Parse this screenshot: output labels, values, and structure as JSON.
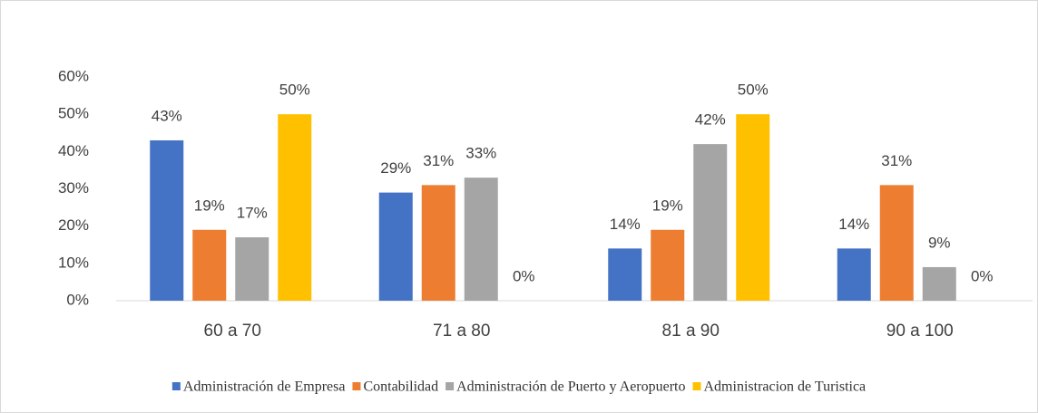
{
  "chart_data": {
    "type": "bar",
    "categories": [
      "60 a 70",
      "71 a 80",
      "81 a 90",
      "90 a 100"
    ],
    "series": [
      {
        "name": "Administración de Empresa",
        "color": "#4472c4",
        "values": [
          43,
          29,
          14,
          14
        ],
        "value_labels": [
          "43%",
          "29%",
          "14%",
          "14%"
        ]
      },
      {
        "name": "Contabilidad",
        "color": "#ed7d31",
        "values": [
          19,
          31,
          19,
          31
        ],
        "value_labels": [
          "19%",
          "31%",
          "19%",
          "31%"
        ]
      },
      {
        "name": "Administración de Puerto y Aeropuerto",
        "color": "#a5a5a5",
        "values": [
          17,
          33,
          42,
          9
        ],
        "value_labels": [
          "17%",
          "33%",
          "42%",
          "9%"
        ]
      },
      {
        "name": "Administracion de Turistica",
        "color": "#ffc000",
        "values": [
          50,
          0,
          50,
          0
        ],
        "value_labels": [
          "50%",
          "0%",
          "50%",
          "0%"
        ]
      }
    ],
    "ylim": [
      0,
      60
    ],
    "yticks": [
      {
        "value": 0,
        "label": "0%"
      },
      {
        "value": 10,
        "label": "10%"
      },
      {
        "value": 20,
        "label": "20%"
      },
      {
        "value": 30,
        "label": "30%"
      },
      {
        "value": 40,
        "label": "40%"
      },
      {
        "value": 50,
        "label": "50%"
      },
      {
        "value": 60,
        "label": "60%"
      }
    ],
    "grid": false,
    "legend": "bottom"
  }
}
